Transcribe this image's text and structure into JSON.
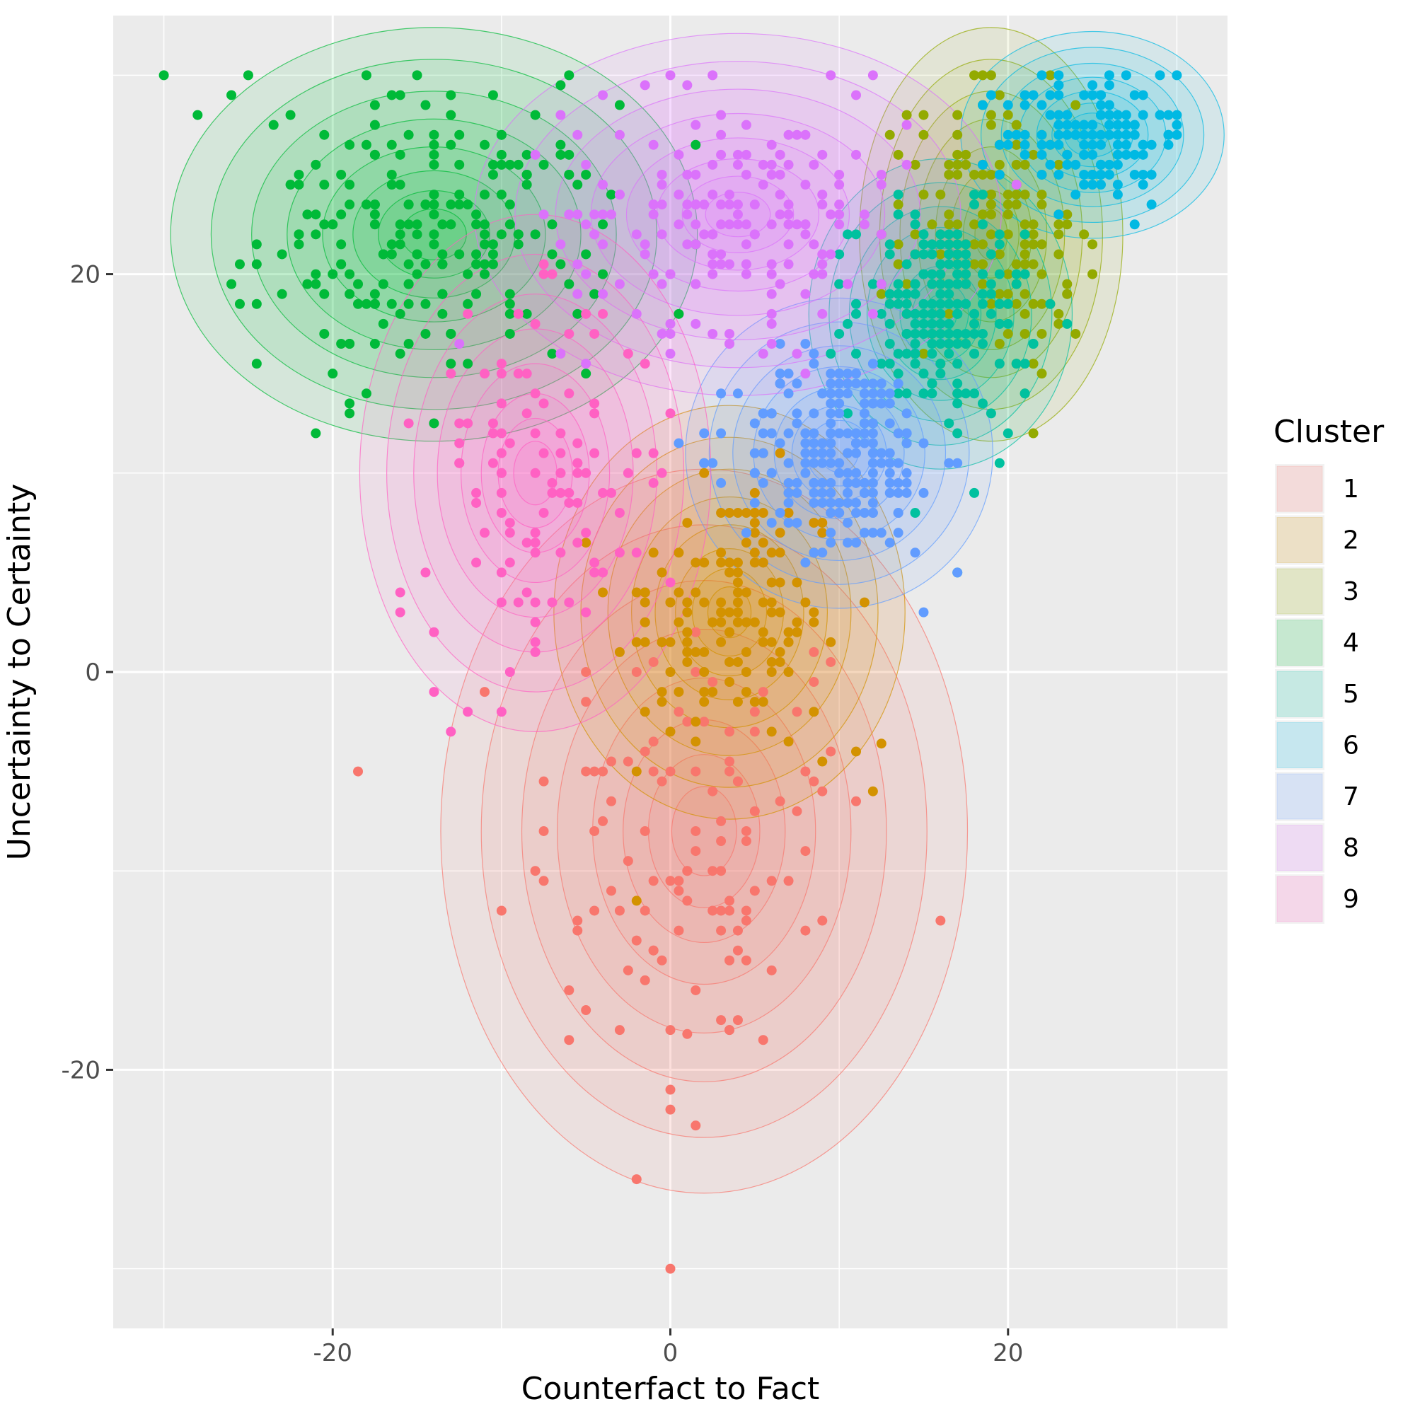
{
  "chart_data": {
    "type": "scatter",
    "title": "",
    "xlabel": "Counterfact to Fact",
    "ylabel": "Uncertainty to Certainty",
    "xlim": [
      -33,
      33
    ],
    "ylim": [
      -33,
      33
    ],
    "x_ticks": [
      -20,
      0,
      20
    ],
    "x_tick_labels": [
      "-20",
      "0",
      "20"
    ],
    "y_ticks": [
      -20,
      0,
      20
    ],
    "y_tick_labels": [
      "-20",
      "0",
      "20"
    ],
    "grid": true,
    "overlay": "2D density contours (filled) per cluster",
    "legend": {
      "title": "Cluster",
      "position": "right",
      "entries": [
        "1",
        "2",
        "3",
        "4",
        "5",
        "6",
        "7",
        "8",
        "9"
      ]
    },
    "colors": {
      "1": "#F8766D",
      "2": "#D39200",
      "3": "#93AA00",
      "4": "#00BA38",
      "5": "#00C19F",
      "6": "#00B9E3",
      "7": "#619CFF",
      "8": "#DB72FB",
      "9": "#FF61C3"
    },
    "clusters": [
      {
        "name": "1",
        "center": [
          2,
          -8
        ],
        "spread": [
          6,
          7
        ],
        "approx_n": 120,
        "sample_points": [
          [
            0,
            -30
          ],
          [
            -2,
            -25.5
          ],
          [
            0,
            -21
          ],
          [
            0,
            -22
          ],
          [
            1.5,
            -22.8
          ],
          [
            -6,
            -18.5
          ],
          [
            -3,
            -18
          ],
          [
            0,
            -18
          ],
          [
            1,
            -18.2
          ],
          [
            -6,
            -16
          ],
          [
            -5,
            -17
          ],
          [
            -1,
            -14
          ],
          [
            -3,
            -12
          ],
          [
            -10,
            -12
          ],
          [
            -8,
            -10
          ],
          [
            4,
            -13
          ],
          [
            5,
            -11
          ],
          [
            -1,
            -5
          ],
          [
            -4,
            -5
          ],
          [
            5,
            -7
          ],
          [
            8,
            -9
          ]
        ]
      },
      {
        "name": "2",
        "center": [
          3.5,
          3
        ],
        "spread": [
          4,
          4
        ],
        "approx_n": 150,
        "sample_points": [
          [
            12,
            -6
          ],
          [
            12.5,
            -3.6
          ],
          [
            11,
            -4
          ],
          [
            9,
            -4.5
          ],
          [
            7,
            -3.5
          ],
          [
            2,
            10
          ],
          [
            5,
            7
          ],
          [
            3,
            6
          ],
          [
            1,
            1
          ],
          [
            0,
            0
          ],
          [
            6,
            0
          ],
          [
            7,
            0
          ]
        ]
      },
      {
        "name": "3",
        "center": [
          19,
          22
        ],
        "spread": [
          3,
          4
        ],
        "approx_n": 180,
        "sample_points": [
          [
            18,
            30
          ],
          [
            19,
            30
          ],
          [
            20,
            28
          ],
          [
            17,
            25
          ],
          [
            14,
            28
          ],
          [
            13,
            27
          ],
          [
            20,
            20
          ],
          [
            25,
            20
          ],
          [
            24,
            17
          ],
          [
            22,
            15
          ],
          [
            21,
            14
          ]
        ]
      },
      {
        "name": "4",
        "center": [
          -14,
          22
        ],
        "spread": [
          6,
          4
        ],
        "approx_n": 220,
        "sample_points": [
          [
            -30,
            30
          ],
          [
            -25,
            30
          ],
          [
            -18,
            30
          ],
          [
            -15,
            30
          ],
          [
            -28,
            28
          ],
          [
            -26,
            29
          ],
          [
            -22,
            25
          ],
          [
            -20,
            20
          ],
          [
            -15,
            20
          ],
          [
            -12,
            20
          ],
          [
            -10,
            22
          ],
          [
            -21,
            12
          ],
          [
            -20,
            15
          ],
          [
            -19,
            13
          ],
          [
            -6,
            30
          ],
          [
            -6,
            25
          ]
        ]
      },
      {
        "name": "5",
        "center": [
          16,
          18
        ],
        "spread": [
          3,
          3
        ],
        "approx_n": 200,
        "sample_points": [
          [
            16,
            20
          ],
          [
            17,
            20
          ],
          [
            18,
            18
          ],
          [
            15,
            15
          ],
          [
            14,
            14
          ],
          [
            17,
            12
          ],
          [
            18,
            9
          ],
          [
            17,
            5
          ],
          [
            21,
            14
          ],
          [
            20,
            12
          ]
        ]
      },
      {
        "name": "6",
        "center": [
          25,
          27
        ],
        "spread": [
          3,
          2
        ],
        "approx_n": 140,
        "sample_points": [
          [
            30,
            30
          ],
          [
            28,
            29
          ],
          [
            26,
            30
          ],
          [
            25,
            27
          ],
          [
            24,
            24
          ],
          [
            21,
            29
          ],
          [
            23,
            28
          ],
          [
            29,
            28
          ]
        ]
      },
      {
        "name": "7",
        "center": [
          10,
          11
        ],
        "spread": [
          3.5,
          3
        ],
        "approx_n": 230,
        "sample_points": [
          [
            15,
            3
          ],
          [
            17,
            5
          ],
          [
            9,
            6
          ],
          [
            8,
            10
          ],
          [
            10,
            10
          ],
          [
            12,
            12
          ],
          [
            13,
            14
          ],
          [
            11,
            15
          ],
          [
            7,
            12
          ],
          [
            6,
            13
          ],
          [
            3,
            12
          ],
          [
            2,
            12
          ]
        ]
      },
      {
        "name": "8",
        "center": [
          4,
          23
        ],
        "spread": [
          6,
          3.5
        ],
        "approx_n": 180,
        "sample_points": [
          [
            0,
            30
          ],
          [
            12,
            30
          ],
          [
            -4,
            29
          ],
          [
            3,
            26
          ],
          [
            8,
            27
          ],
          [
            10,
            25
          ],
          [
            5,
            22
          ],
          [
            0,
            20
          ],
          [
            6,
            18
          ],
          [
            12,
            18
          ],
          [
            -5,
            20
          ]
        ]
      },
      {
        "name": "9",
        "center": [
          -8,
          10
        ],
        "spread": [
          4,
          5
        ],
        "approx_n": 110,
        "sample_points": [
          [
            -16,
            4
          ],
          [
            -16,
            3
          ],
          [
            -14,
            2
          ],
          [
            -14,
            -1
          ],
          [
            -13,
            -3
          ],
          [
            -12,
            -2
          ],
          [
            -10,
            -2
          ],
          [
            -10,
            5
          ],
          [
            -11,
            7
          ],
          [
            -11,
            15
          ],
          [
            -9,
            15
          ],
          [
            -8,
            12
          ],
          [
            -6,
            14
          ],
          [
            -5,
            10
          ],
          [
            -4,
            18
          ],
          [
            -5,
            18
          ],
          [
            -3,
            6
          ],
          [
            -1,
            11
          ],
          [
            0,
            13
          ],
          [
            -2,
            6
          ],
          [
            -4,
            5
          ],
          [
            -5,
            3
          ]
        ]
      }
    ]
  }
}
